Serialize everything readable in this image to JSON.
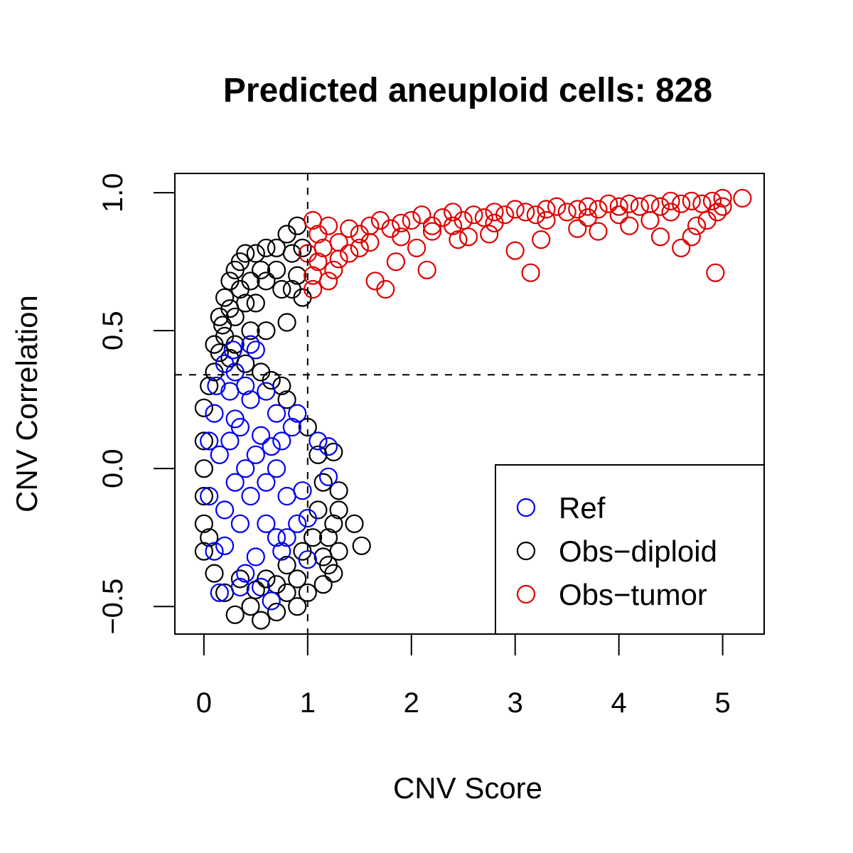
{
  "chart_data": {
    "type": "scatter",
    "title": "Predicted aneuploid cells: 828",
    "xlabel": "CNV Score",
    "ylabel": "CNV Correlation",
    "xlim": [
      -0.28,
      5.4
    ],
    "ylim": [
      -0.6,
      1.07
    ],
    "x_ticks": [
      0,
      1,
      2,
      3,
      4,
      5
    ],
    "y_ticks": [
      -0.5,
      0.0,
      0.5,
      1.0
    ],
    "x_tick_labels": [
      "0",
      "1",
      "2",
      "3",
      "4",
      "5"
    ],
    "y_tick_labels": [
      "−0.5",
      "0.0",
      "0.5",
      "1.0"
    ],
    "thresholds": {
      "x": 1.0,
      "y": 0.34
    },
    "grid": false,
    "legend_position": "bottom-right",
    "series": [
      {
        "name": "Ref",
        "color": "#0000ee",
        "points": [
          [
            0.15,
            0.05
          ],
          [
            0.25,
            0.1
          ],
          [
            0.3,
            -0.05
          ],
          [
            0.35,
            0.15
          ],
          [
            0.4,
            0.0
          ],
          [
            0.45,
            -0.1
          ],
          [
            0.5,
            0.05
          ],
          [
            0.2,
            -0.15
          ],
          [
            0.1,
            0.2
          ],
          [
            0.55,
            0.12
          ],
          [
            0.6,
            -0.05
          ],
          [
            0.65,
            0.08
          ],
          [
            0.35,
            -0.2
          ],
          [
            0.25,
            0.28
          ],
          [
            0.45,
            0.25
          ],
          [
            0.7,
            0.0
          ],
          [
            0.75,
            0.1
          ],
          [
            0.8,
            -0.1
          ],
          [
            0.3,
            0.35
          ],
          [
            0.45,
            0.45
          ],
          [
            0.5,
            0.43
          ],
          [
            0.28,
            0.43
          ],
          [
            0.2,
            0.38
          ],
          [
            0.1,
            -0.3
          ],
          [
            0.15,
            -0.45
          ],
          [
            0.35,
            -0.43
          ],
          [
            0.55,
            -0.43
          ],
          [
            0.65,
            -0.48
          ],
          [
            0.4,
            -0.38
          ],
          [
            0.75,
            -0.3
          ],
          [
            0.8,
            -0.25
          ],
          [
            1.0,
            -0.33
          ],
          [
            1.1,
            0.1
          ],
          [
            1.2,
            0.08
          ],
          [
            1.2,
            -0.03
          ],
          [
            1.0,
            -0.18
          ],
          [
            0.9,
            0.2
          ],
          [
            0.7,
            -0.25
          ],
          [
            0.5,
            -0.32
          ],
          [
            0.3,
            0.18
          ],
          [
            0.05,
            -0.1
          ],
          [
            0.05,
            0.1
          ],
          [
            0.6,
            0.28
          ],
          [
            0.85,
            0.15
          ],
          [
            0.95,
            -0.08
          ],
          [
            0.6,
            -0.2
          ],
          [
            0.4,
            0.3
          ],
          [
            0.2,
            -0.28
          ],
          [
            0.12,
            0.3
          ],
          [
            0.7,
            0.2
          ],
          [
            0.9,
            -0.2
          ]
        ]
      },
      {
        "name": "Obs−diploid",
        "color": "#000000",
        "points": [
          [
            0.0,
            0.22
          ],
          [
            0.0,
            -0.2
          ],
          [
            0.0,
            0.0
          ],
          [
            0.1,
            0.45
          ],
          [
            0.15,
            0.55
          ],
          [
            0.2,
            0.62
          ],
          [
            0.25,
            0.68
          ],
          [
            0.3,
            0.72
          ],
          [
            0.35,
            0.75
          ],
          [
            0.4,
            0.78
          ],
          [
            0.5,
            0.78
          ],
          [
            0.6,
            0.8
          ],
          [
            0.7,
            0.8
          ],
          [
            0.8,
            0.85
          ],
          [
            0.9,
            0.88
          ],
          [
            0.85,
            0.65
          ],
          [
            0.75,
            0.65
          ],
          [
            0.8,
            0.53
          ],
          [
            0.6,
            0.5
          ],
          [
            0.5,
            0.6
          ],
          [
            0.4,
            0.6
          ],
          [
            0.3,
            0.55
          ],
          [
            0.2,
            0.48
          ],
          [
            0.9,
            0.7
          ],
          [
            0.95,
            0.8
          ],
          [
            0.7,
            0.72
          ],
          [
            0.95,
            0.62
          ],
          [
            0.6,
            0.68
          ],
          [
            0.1,
            0.35
          ],
          [
            0.05,
            0.3
          ],
          [
            1.45,
            -0.2
          ],
          [
            1.52,
            -0.28
          ],
          [
            1.25,
            0.06
          ],
          [
            1.2,
            -0.25
          ],
          [
            1.2,
            -0.35
          ],
          [
            1.15,
            -0.42
          ],
          [
            1.25,
            -0.38
          ],
          [
            1.3,
            -0.3
          ],
          [
            1.3,
            -0.15
          ],
          [
            0.3,
            -0.53
          ],
          [
            0.55,
            -0.55
          ],
          [
            0.7,
            -0.52
          ],
          [
            0.8,
            -0.45
          ],
          [
            0.9,
            -0.5
          ],
          [
            1.0,
            -0.45
          ],
          [
            0.2,
            -0.45
          ],
          [
            0.1,
            -0.38
          ],
          [
            0.45,
            -0.5
          ],
          [
            0.6,
            -0.4
          ],
          [
            0.8,
            -0.35
          ],
          [
            0.95,
            -0.3
          ],
          [
            1.05,
            -0.25
          ],
          [
            1.1,
            -0.15
          ],
          [
            1.15,
            -0.05
          ],
          [
            1.1,
            0.05
          ],
          [
            1.0,
            0.15
          ],
          [
            0.8,
            0.25
          ],
          [
            0.75,
            0.3
          ],
          [
            0.65,
            0.32
          ],
          [
            0.55,
            0.35
          ],
          [
            0.4,
            0.38
          ],
          [
            0.25,
            0.4
          ],
          [
            0.15,
            0.42
          ],
          [
            0.0,
            0.1
          ],
          [
            0.0,
            -0.1
          ],
          [
            0.0,
            -0.3
          ],
          [
            0.05,
            -0.25
          ],
          [
            1.25,
            -0.2
          ],
          [
            1.3,
            -0.08
          ],
          [
            1.15,
            -0.32
          ],
          [
            0.9,
            -0.4
          ],
          [
            0.7,
            -0.42
          ],
          [
            0.5,
            -0.44
          ],
          [
            0.35,
            -0.4
          ],
          [
            0.85,
            0.78
          ],
          [
            0.55,
            0.72
          ],
          [
            0.45,
            0.68
          ],
          [
            0.35,
            0.65
          ],
          [
            0.25,
            0.58
          ],
          [
            0.18,
            0.52
          ],
          [
            0.3,
            0.45
          ],
          [
            0.45,
            0.5
          ]
        ]
      },
      {
        "name": "Obs−tumor",
        "color": "#dd0000",
        "points": [
          [
            1.05,
            0.9
          ],
          [
            1.1,
            0.85
          ],
          [
            1.15,
            0.8
          ],
          [
            1.2,
            0.88
          ],
          [
            1.3,
            0.82
          ],
          [
            1.4,
            0.87
          ],
          [
            1.5,
            0.85
          ],
          [
            1.6,
            0.88
          ],
          [
            1.7,
            0.9
          ],
          [
            1.8,
            0.87
          ],
          [
            1.9,
            0.89
          ],
          [
            2.0,
            0.9
          ],
          [
            2.1,
            0.92
          ],
          [
            2.2,
            0.88
          ],
          [
            2.3,
            0.91
          ],
          [
            2.4,
            0.93
          ],
          [
            2.5,
            0.9
          ],
          [
            2.6,
            0.92
          ],
          [
            2.7,
            0.91
          ],
          [
            2.8,
            0.93
          ],
          [
            2.9,
            0.92
          ],
          [
            3.0,
            0.94
          ],
          [
            3.1,
            0.93
          ],
          [
            3.2,
            0.92
          ],
          [
            3.3,
            0.94
          ],
          [
            3.4,
            0.95
          ],
          [
            3.5,
            0.93
          ],
          [
            3.6,
            0.94
          ],
          [
            3.7,
            0.95
          ],
          [
            3.8,
            0.94
          ],
          [
            3.9,
            0.96
          ],
          [
            4.0,
            0.95
          ],
          [
            4.1,
            0.96
          ],
          [
            4.2,
            0.95
          ],
          [
            4.3,
            0.96
          ],
          [
            4.4,
            0.95
          ],
          [
            4.5,
            0.97
          ],
          [
            4.6,
            0.96
          ],
          [
            4.7,
            0.97
          ],
          [
            4.8,
            0.96
          ],
          [
            4.9,
            0.97
          ],
          [
            5.0,
            0.98
          ],
          [
            5.19,
            0.98
          ],
          [
            1.05,
            0.65
          ],
          [
            1.05,
            0.7
          ],
          [
            1.1,
            0.75
          ],
          [
            1.2,
            0.68
          ],
          [
            1.3,
            0.76
          ],
          [
            1.5,
            0.8
          ],
          [
            1.65,
            0.68
          ],
          [
            1.75,
            0.65
          ],
          [
            1.85,
            0.75
          ],
          [
            2.15,
            0.72
          ],
          [
            2.05,
            0.8
          ],
          [
            2.45,
            0.83
          ],
          [
            2.55,
            0.84
          ],
          [
            2.75,
            0.85
          ],
          [
            3.0,
            0.79
          ],
          [
            3.15,
            0.71
          ],
          [
            3.25,
            0.83
          ],
          [
            3.6,
            0.87
          ],
          [
            3.8,
            0.86
          ],
          [
            4.1,
            0.88
          ],
          [
            4.3,
            0.9
          ],
          [
            4.4,
            0.84
          ],
          [
            4.6,
            0.8
          ],
          [
            4.7,
            0.84
          ],
          [
            4.75,
            0.88
          ],
          [
            4.85,
            0.9
          ],
          [
            4.93,
            0.71
          ],
          [
            4.95,
            0.93
          ],
          [
            5.0,
            0.95
          ],
          [
            1.0,
            0.78
          ],
          [
            1.25,
            0.72
          ],
          [
            1.4,
            0.78
          ],
          [
            1.6,
            0.82
          ],
          [
            1.9,
            0.84
          ],
          [
            2.2,
            0.86
          ],
          [
            2.4,
            0.88
          ],
          [
            2.8,
            0.89
          ],
          [
            3.3,
            0.9
          ],
          [
            3.7,
            0.91
          ],
          [
            4.0,
            0.92
          ],
          [
            4.5,
            0.93
          ]
        ]
      }
    ]
  }
}
